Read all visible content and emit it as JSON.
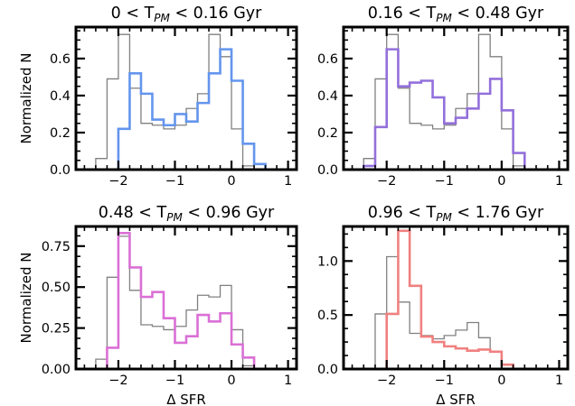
{
  "chart_data": [
    {
      "type": "step-histogram",
      "title": {
        "pre": "0 < T",
        "sub": "PM",
        "post": " < 0.16 Gyr"
      },
      "xlabel": "",
      "ylabel": "Normalized N",
      "xlim": [
        -2.75,
        1.15
      ],
      "ylim": [
        0,
        0.77
      ],
      "xticks": [
        -2,
        -1,
        0,
        1
      ],
      "xtick_labels": [
        "−2",
        "−1",
        "0",
        "1"
      ],
      "yticks": [
        0.0,
        0.2,
        0.4,
        0.6
      ],
      "ytick_labels": [
        "0.0",
        "0.2",
        "0.4",
        "0.6"
      ],
      "bin_edges": [
        -2.4,
        -2.2,
        -2.0,
        -1.8,
        -1.6,
        -1.4,
        -1.2,
        -1.0,
        -0.8,
        -0.6,
        -0.4,
        -0.2,
        0.0,
        0.2,
        0.4,
        0.6,
        0.8,
        1.0
      ],
      "series": [
        {
          "color": "#808080",
          "values": [
            0.06,
            0.49,
            0.73,
            0.44,
            0.25,
            0.24,
            0.22,
            0.24,
            0.33,
            0.41,
            0.73,
            0.61,
            0.22,
            0.02,
            0.0,
            0.0,
            0.0
          ]
        },
        {
          "color": "#6495ED",
          "values": [
            0.0,
            0.0,
            0.22,
            0.52,
            0.41,
            0.27,
            0.24,
            0.3,
            0.26,
            0.36,
            0.52,
            0.65,
            0.48,
            0.14,
            0.03,
            0.0,
            0.0
          ]
        }
      ]
    },
    {
      "type": "step-histogram",
      "title": {
        "pre": "0.16 < T",
        "sub": "PM",
        "post": " < 0.48 Gyr"
      },
      "xlabel": "",
      "ylabel": "",
      "xlim": [
        -2.75,
        1.15
      ],
      "ylim": [
        0,
        0.77
      ],
      "xticks": [
        -2,
        -1,
        0,
        1
      ],
      "xtick_labels": [
        "−2",
        "−1",
        "0",
        "1"
      ],
      "yticks": [
        0.0,
        0.2,
        0.4,
        0.6
      ],
      "ytick_labels": [
        "0.0",
        "0.2",
        "0.4",
        "0.6"
      ],
      "bin_edges": [
        -2.4,
        -2.2,
        -2.0,
        -1.8,
        -1.6,
        -1.4,
        -1.2,
        -1.0,
        -0.8,
        -0.6,
        -0.4,
        -0.2,
        0.0,
        0.2,
        0.4,
        0.6,
        0.8,
        1.0
      ],
      "series": [
        {
          "color": "#808080",
          "values": [
            0.06,
            0.49,
            0.73,
            0.44,
            0.25,
            0.24,
            0.22,
            0.24,
            0.33,
            0.41,
            0.73,
            0.61,
            0.22,
            0.02,
            0.0,
            0.0,
            0.0
          ]
        },
        {
          "color": "#9370DB",
          "values": [
            0.02,
            0.23,
            0.65,
            0.45,
            0.47,
            0.48,
            0.39,
            0.25,
            0.28,
            0.33,
            0.41,
            0.49,
            0.32,
            0.09,
            0.0,
            0.0,
            0.0
          ]
        }
      ]
    },
    {
      "type": "step-histogram",
      "title": {
        "pre": "0.48 < T",
        "sub": "PM",
        "post": " < 0.96 Gyr"
      },
      "xlabel": "Δ SFR",
      "ylabel": "Normalized N",
      "xlim": [
        -2.75,
        1.15
      ],
      "ylim": [
        0,
        0.87
      ],
      "xticks": [
        -2,
        -1,
        0,
        1
      ],
      "xtick_labels": [
        "−2",
        "−1",
        "0",
        "1"
      ],
      "yticks": [
        0.0,
        0.25,
        0.5,
        0.75
      ],
      "ytick_labels": [
        "0.00",
        "0.25",
        "0.50",
        "0.75"
      ],
      "bin_edges": [
        -2.4,
        -2.2,
        -2.0,
        -1.8,
        -1.6,
        -1.4,
        -1.2,
        -1.0,
        -0.8,
        -0.6,
        -0.4,
        -0.2,
        0.0,
        0.2,
        0.4,
        0.6,
        0.8,
        1.0
      ],
      "series": [
        {
          "color": "#808080",
          "values": [
            0.06,
            0.56,
            0.81,
            0.48,
            0.27,
            0.26,
            0.24,
            0.26,
            0.36,
            0.45,
            0.44,
            0.51,
            0.24,
            0.02,
            0.0,
            0.0,
            0.0
          ]
        },
        {
          "color": "#DA70D6",
          "values": [
            0.0,
            0.13,
            0.83,
            0.62,
            0.44,
            0.47,
            0.31,
            0.16,
            0.2,
            0.33,
            0.29,
            0.34,
            0.15,
            0.07,
            0.0,
            0.0,
            0.0
          ]
        }
      ]
    },
    {
      "type": "step-histogram",
      "title": {
        "pre": "0.96 < T",
        "sub": "PM",
        "post": " < 1.76 Gyr"
      },
      "xlabel": "Δ SFR",
      "ylabel": "",
      "xlim": [
        -2.75,
        1.15
      ],
      "ylim": [
        0,
        1.32
      ],
      "xticks": [
        -2,
        -1,
        0,
        1
      ],
      "xtick_labels": [
        "−2",
        "−1",
        "0",
        "1"
      ],
      "yticks": [
        0.0,
        0.5,
        1.0
      ],
      "ytick_labels": [
        "0.0",
        "0.5",
        "1.0"
      ],
      "bin_edges": [
        -2.4,
        -2.2,
        -2.0,
        -1.8,
        -1.6,
        -1.4,
        -1.2,
        -1.0,
        -0.8,
        -0.6,
        -0.4,
        -0.2,
        0.0,
        0.2,
        0.4,
        0.6,
        0.8,
        1.0
      ],
      "series": [
        {
          "color": "#808080",
          "values": [
            0.0,
            0.51,
            1.04,
            0.62,
            0.33,
            0.31,
            0.28,
            0.31,
            0.36,
            0.43,
            0.29,
            0.16,
            0.0,
            0.0,
            0.0,
            0.0,
            0.0
          ]
        },
        {
          "color": "#F08080",
          "values": [
            0.0,
            0.0,
            0.51,
            1.28,
            0.77,
            0.3,
            0.25,
            0.21,
            0.19,
            0.17,
            0.18,
            0.16,
            0.04,
            0.0,
            0.0,
            0.0,
            0.0
          ]
        }
      ]
    }
  ]
}
